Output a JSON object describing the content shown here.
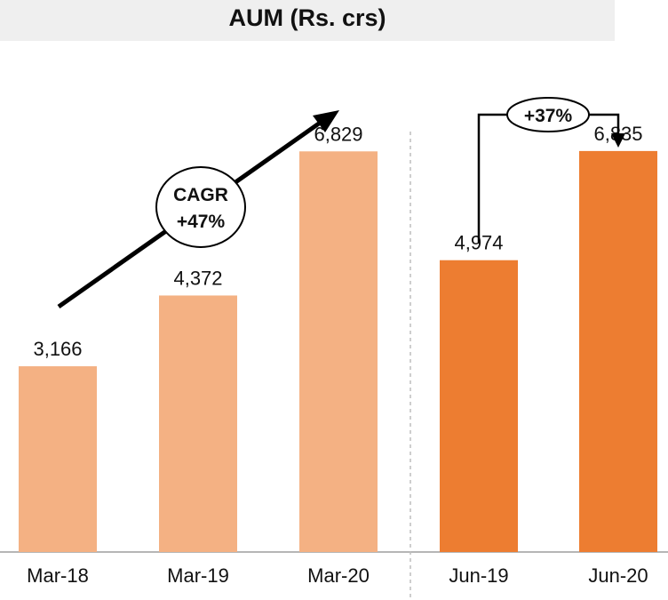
{
  "chart_data": {
    "type": "bar",
    "title": "AUM (Rs. crs)",
    "categories": [
      "Mar-18",
      "Mar-19",
      "Mar-20",
      "Jun-19",
      "Jun-20"
    ],
    "values": [
      3166,
      4372,
      6829,
      4974,
      6835
    ],
    "value_labels": [
      "3,166",
      "4,372",
      "6,829",
      "4,974",
      "6,835"
    ],
    "ylim": [
      0,
      8500
    ],
    "grid": false,
    "colors": [
      "#f4b183",
      "#f4b183",
      "#f4b183",
      "#ed7d31",
      "#ed7d31"
    ],
    "annotations": {
      "cagr_line1": "CAGR",
      "cagr_line2": "+47%",
      "growth": "+37%"
    }
  }
}
